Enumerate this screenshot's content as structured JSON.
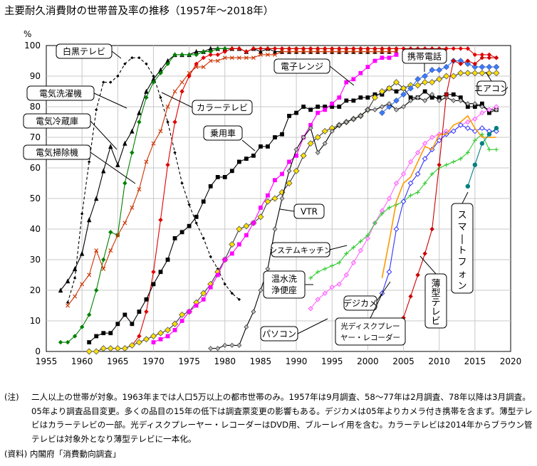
{
  "title": "主要耐久消費財の世帯普及率の推移（1957年〜2018年）",
  "notes": {
    "label": "(注)",
    "text": "二人以上の世帯が対象。1963年までは人口5万以上の都市世帯のみ。1957年は9月調査、58〜77年は2月調査、78年以降は3月調査。05年より調査品目変更。多くの品目の15年の低下は調査票変更の影響もある。デジカメは05年よりカメラ付き携帯を含まず。薄型テレビはカラーテレビの一部。光ディスクプレーヤー・レコーダーはDVD用、ブルーレイ用を含む。カラーテレビは2014年からブラウン管テレビは対象外となり薄型テレビに一本化。",
    "source": "(資料) 内閣府「消費動向調査」"
  },
  "chart_data": {
    "type": "line",
    "title": "主要耐久消費財の世帯普及率の推移（1957年〜2018年）",
    "xlabel": "",
    "ylabel": "%",
    "xlim": [
      1955,
      2020
    ],
    "ylim": [
      0,
      100
    ],
    "x_ticks": [
      1955,
      1960,
      1965,
      1970,
      1975,
      1980,
      1985,
      1990,
      1995,
      2000,
      2005,
      2010,
      2015,
      2020
    ],
    "y_ticks": [
      0,
      10,
      20,
      30,
      40,
      50,
      60,
      70,
      80,
      90,
      100
    ],
    "grid": true,
    "series": [
      {
        "name": "白黒テレビ",
        "color": "#000000",
        "marker": "diamond-small",
        "dash": "4,3",
        "x": [
          1958,
          1959,
          1960,
          1961,
          1962,
          1963,
          1964,
          1965,
          1966,
          1967,
          1968,
          1969,
          1970,
          1971,
          1972,
          1973,
          1974,
          1975,
          1976,
          1977,
          1978,
          1979,
          1980,
          1981,
          1982
        ],
        "y": [
          16,
          24,
          45,
          62,
          79,
          88,
          88,
          90,
          94,
          96,
          96,
          94,
          90,
          83,
          75,
          65,
          55,
          48,
          42,
          37,
          31,
          27,
          22,
          19,
          17
        ]
      },
      {
        "name": "電気冷蔵庫",
        "color": "#000000",
        "marker": "triangle",
        "x": [
          1957,
          1958,
          1959,
          1960,
          1961,
          1962,
          1963,
          1964,
          1965,
          1966,
          1967,
          1968,
          1969,
          1970,
          1971,
          1972,
          1973,
          1974,
          1975,
          1976,
          1977,
          1978,
          1979,
          1980,
          1981,
          1982,
          1983,
          1984,
          1985,
          1986,
          1987,
          1988,
          1989,
          1990,
          1991,
          1992,
          1993,
          1994,
          1995,
          1996,
          1997,
          1998,
          1999,
          2000,
          2001,
          2002,
          2003,
          2004
        ],
        "y": [
          20,
          23,
          27,
          32,
          43,
          50,
          59,
          67,
          61,
          68,
          72,
          78,
          85,
          89,
          92,
          95,
          97,
          97,
          97,
          98,
          98,
          99,
          99,
          99,
          99,
          99,
          98,
          99,
          98,
          99,
          98,
          98,
          98,
          98,
          98,
          98,
          98,
          98,
          98,
          98,
          98,
          98,
          98,
          98,
          98,
          98,
          98,
          98
        ]
      },
      {
        "name": "電気洗濯機",
        "color": "#008000",
        "marker": "diamond",
        "x": [
          1957,
          1958,
          1959,
          1960,
          1961,
          1962,
          1963,
          1964,
          1965,
          1966,
          1967,
          1968,
          1969,
          1970,
          1971,
          1972,
          1973,
          1974,
          1975,
          1976,
          1977,
          1978,
          1979,
          1980,
          1981,
          1982,
          1983,
          1984,
          1985,
          1986,
          1987,
          1988,
          1989,
          1990,
          1991,
          1992,
          1993,
          1994,
          1995,
          1996,
          1997,
          1998,
          1999,
          2000,
          2001,
          2002,
          2003,
          2004
        ],
        "y": [
          3,
          3,
          5,
          8,
          12,
          20,
          30,
          39,
          38,
          55,
          65,
          75,
          83,
          88,
          91,
          94,
          97,
          97,
          97,
          97,
          98,
          98,
          99,
          99,
          99,
          99,
          98,
          99,
          99,
          99,
          99,
          99,
          99,
          99,
          99,
          99,
          99,
          99,
          99,
          99,
          99,
          99,
          99,
          99,
          99,
          99,
          99,
          99
        ]
      },
      {
        "name": "電気掃除機",
        "color": "#cc3300",
        "marker": "cross",
        "x": [
          1958,
          1959,
          1960,
          1961,
          1962,
          1963,
          1964,
          1965,
          1966,
          1967,
          1968,
          1969,
          1970,
          1971,
          1972,
          1973,
          1974,
          1975,
          1976,
          1977,
          1978,
          1979,
          1980,
          1981,
          1982,
          1983,
          1984,
          1985,
          1986,
          1987,
          1988,
          1989,
          1990,
          1991,
          1992,
          1993,
          1994,
          1995,
          1996,
          1997,
          1998,
          1999,
          2000,
          2001,
          2002,
          2003,
          2004
        ],
        "y": [
          15,
          18,
          22,
          25,
          33,
          27,
          33,
          38,
          42,
          47,
          53,
          62,
          68,
          72,
          80,
          85,
          88,
          91,
          93,
          93,
          95,
          95,
          96,
          96,
          96,
          96,
          96,
          97,
          97,
          97,
          98,
          98,
          98,
          98,
          98,
          98,
          98,
          98,
          98,
          98,
          98,
          98,
          98,
          98,
          98,
          98,
          98
        ]
      },
      {
        "name": "カラーテレビ",
        "color": "#e00000",
        "marker": "diamond",
        "x": [
          1966,
          1967,
          1968,
          1969,
          1970,
          1971,
          1972,
          1973,
          1974,
          1975,
          1976,
          1977,
          1978,
          1979,
          1980,
          1981,
          1982,
          1983,
          1984,
          1985,
          1986,
          1987,
          1988,
          1989,
          1990,
          1991,
          1992,
          1993,
          1994,
          1995,
          1996,
          1997,
          1998,
          1999,
          2000,
          2001,
          2002,
          2003,
          2004,
          2005,
          2006,
          2007,
          2008,
          2009,
          2010,
          2011,
          2012,
          2013,
          2014,
          2015,
          2016,
          2017,
          2018
        ],
        "y": [
          1,
          2,
          5,
          13,
          26,
          43,
          61,
          75,
          85,
          90,
          94,
          96,
          97,
          97,
          98,
          99,
          99,
          98,
          99,
          99,
          99,
          99,
          99,
          99,
          99,
          99,
          99,
          99,
          99,
          99,
          99,
          99,
          99,
          99,
          99,
          99,
          99,
          99,
          99,
          99,
          99,
          99,
          99,
          99,
          99,
          99,
          99,
          99,
          99,
          97,
          97,
          97,
          96
        ]
      },
      {
        "name": "乗用車",
        "color": "#000000",
        "marker": "square",
        "x": [
          1961,
          1962,
          1963,
          1964,
          1965,
          1966,
          1967,
          1968,
          1969,
          1970,
          1971,
          1972,
          1973,
          1974,
          1975,
          1976,
          1977,
          1978,
          1979,
          1980,
          1981,
          1982,
          1983,
          1984,
          1985,
          1986,
          1987,
          1988,
          1989,
          1990,
          1991,
          1992,
          1993,
          1994,
          1995,
          1996,
          1997,
          1998,
          1999,
          2000,
          2001,
          2002,
          2003,
          2004,
          2005,
          2006,
          2007,
          2008,
          2009,
          2010,
          2011,
          2012,
          2013,
          2014,
          2015,
          2016,
          2017,
          2018
        ],
        "y": [
          3,
          5,
          6,
          6,
          9,
          12,
          9,
          13,
          17,
          22,
          26,
          30,
          37,
          39,
          41,
          44,
          49,
          54,
          57,
          57,
          59,
          62,
          63,
          64,
          67,
          67,
          70,
          71,
          77,
          78,
          80,
          79,
          80,
          80,
          80,
          80,
          82,
          82,
          83,
          83,
          84,
          84,
          86,
          85,
          86,
          83,
          83,
          85,
          83,
          83,
          84,
          84,
          83,
          80,
          80,
          81,
          78,
          79
        ]
      },
      {
        "name": "VTR",
        "color": "#000000",
        "marker": "diamond-yellow",
        "x": [
          1961,
          1962,
          1963,
          1964,
          1965,
          1966,
          1967,
          1968,
          1969,
          1970,
          1971,
          1972,
          1973,
          1974,
          1975,
          1976,
          1977,
          1978,
          1979,
          1980,
          1981,
          1982,
          1983,
          1984,
          1985,
          1986,
          1987,
          1988,
          1989,
          1990,
          1991,
          1992,
          1993,
          1994,
          1995,
          1996,
          1997,
          1998,
          1999,
          2000,
          2001,
          2002,
          2003,
          2004,
          2005,
          2006,
          2007,
          2008,
          2009,
          2010,
          2011,
          2012,
          2013,
          2014,
          2015,
          2016,
          2017,
          2018
        ],
        "y": [
          0,
          0,
          1,
          1,
          1,
          1,
          2,
          3,
          4,
          5,
          6,
          7,
          9,
          12,
          13,
          16,
          19,
          22,
          26,
          30,
          35,
          40,
          41,
          42,
          44,
          49,
          50,
          52,
          55,
          59,
          64,
          68,
          70,
          72,
          73,
          74,
          75,
          76,
          77,
          79,
          83,
          85,
          86,
          88,
          86,
          87,
          87,
          88,
          88,
          89,
          90,
          90,
          91,
          91,
          91,
          91,
          91,
          91
        ]
      },
      {
        "name": "エアコン",
        "color": "#3070ff",
        "marker": "diamond-blue",
        "x": [
          2002,
          2003,
          2004,
          2005,
          2006,
          2007,
          2008,
          2009,
          2010,
          2011,
          2012,
          2013,
          2014,
          2015,
          2016,
          2017,
          2018
        ],
        "y": [
          78,
          80,
          82,
          84,
          86,
          89,
          90,
          92,
          92,
          93,
          95,
          95,
          94,
          93,
          93,
          93,
          93
        ]
      },
      {
        "name": "携帯電話",
        "color": "#ff00ff",
        "marker": "square",
        "x": [
          1970,
          1971,
          1972,
          1973,
          1974,
          1975,
          1976,
          1977,
          1978,
          1979,
          1980,
          1981,
          1982,
          1983,
          1984,
          1985,
          1986,
          1987,
          1988,
          1989,
          1990,
          1991,
          1992,
          1993,
          1994,
          1995,
          1996,
          1997,
          1998,
          1999,
          2000,
          2001,
          2002,
          2003,
          2004
        ],
        "y": [
          3,
          4,
          5,
          7,
          10,
          13,
          15,
          17,
          21,
          25,
          30,
          32,
          35,
          38,
          42,
          47,
          51,
          56,
          58,
          62,
          64,
          70,
          74,
          78,
          79,
          81,
          83,
          88,
          89,
          91,
          93,
          95,
          96,
          96,
          97
        ]
      },
      {
        "name": "パソコン",
        "color": "#000000",
        "marker": "diamond-gray",
        "x": [
          1978,
          1979,
          1980,
          1981,
          1982,
          1983,
          1984,
          1985,
          1986,
          1987,
          1988,
          1989,
          1990,
          1991,
          1992,
          1993,
          1994,
          1995,
          1996,
          1997,
          1998,
          1999,
          2000,
          2001,
          2002,
          2003,
          2004,
          2005,
          2006,
          2007,
          2008,
          2009,
          2010,
          2011,
          2012,
          2013,
          2014,
          2015,
          2016,
          2017,
          2018
        ],
        "y": [
          1,
          1,
          2,
          2,
          2,
          8,
          13,
          20,
          27,
          40,
          50,
          59,
          66,
          70,
          73,
          65,
          68,
          72,
          74,
          75,
          76,
          77,
          79,
          79,
          80,
          81,
          79,
          80,
          82,
          83,
          82,
          84,
          82,
          83,
          82,
          82,
          81,
          81,
          80,
          79,
          79
        ]
      },
      {
        "name": "温水洗浄便座",
        "color": "#ff66ff",
        "marker": "diamond-pink",
        "x": [
          1992,
          1993,
          1994,
          1995,
          1996,
          1997,
          1998,
          1999,
          2000,
          2001,
          2002,
          2003,
          2004,
          2005,
          2006,
          2007,
          2008,
          2009,
          2010,
          2011,
          2012,
          2013,
          2014,
          2015,
          2016,
          2017,
          2018
        ],
        "y": [
          14,
          17,
          19,
          21,
          22,
          25,
          29,
          33,
          37,
          42,
          46,
          50,
          55,
          58,
          62,
          65,
          68,
          70,
          71,
          72,
          72,
          74,
          75,
          76,
          78,
          79,
          80
        ]
      },
      {
        "name": "システムキッチン",
        "color": "#33cc33",
        "marker": "plus",
        "x": [
          1992,
          1993,
          1994,
          1995,
          1996,
          1997,
          1998,
          1999,
          2000,
          2001,
          2002,
          2003,
          2004,
          2005,
          2006,
          2007,
          2008,
          2009,
          2010,
          2011,
          2012,
          2013,
          2014,
          2015,
          2016,
          2017,
          2018
        ],
        "y": [
          24,
          26,
          27,
          28,
          29,
          32,
          34,
          36,
          38,
          42,
          45,
          47,
          48,
          49,
          51,
          52,
          55,
          58,
          60,
          61,
          62,
          63,
          65,
          69,
          71,
          66,
          66
        ]
      },
      {
        "name": "光ディスクプレーヤー・レコーダー",
        "color": "#3333ff",
        "marker": "diamond-open",
        "x": [
          2002,
          2003,
          2004,
          2005,
          2006,
          2007,
          2008,
          2009,
          2010,
          2011,
          2012,
          2013,
          2014,
          2015,
          2016,
          2017,
          2018
        ],
        "y": [
          19,
          26,
          40,
          49,
          55,
          58,
          63,
          66,
          69,
          71,
          72,
          74,
          73,
          72,
          73,
          72,
          72
        ]
      },
      {
        "name": "デジカメ",
        "color": "#ff9900",
        "marker": "none",
        "x": [
          2002,
          2003,
          2004,
          2005,
          2006,
          2007,
          2008,
          2009,
          2010,
          2011,
          2012,
          2013,
          2014,
          2015,
          2016,
          2017,
          2018
        ],
        "y": [
          24,
          36,
          49,
          55,
          57,
          62,
          67,
          66,
          71,
          71,
          74,
          75,
          77,
          73,
          70,
          70,
          70
        ]
      },
      {
        "name": "スマートフォン",
        "color": "#008080",
        "marker": "circle",
        "x": [
          2014,
          2015,
          2016,
          2017,
          2018
        ],
        "y": [
          54,
          61,
          68,
          71,
          73
        ]
      },
      {
        "name": "薄型テレビ",
        "color": "#cc0000",
        "marker": "diamond",
        "x": [
          2005,
          2006,
          2007,
          2008,
          2009,
          2010,
          2011,
          2012,
          2013,
          2014,
          2015,
          2016,
          2017,
          2018
        ],
        "y": [
          11,
          18,
          25,
          32,
          40,
          61,
          84,
          95,
          94,
          95,
          94,
          96,
          96,
          96
        ]
      }
    ],
    "labels": [
      "白黒テレビ",
      "電気洗濯機",
      "電気冷蔵庫",
      "電気掃除機",
      "カラーテレビ",
      "乗用車",
      "電子レンジ",
      "携帯電話",
      "エアコン",
      "VTR",
      "システムキッチン",
      "温水洗浄便座",
      "デジカメ",
      "パソコン",
      "光ディスクプレーヤー・レコーダー",
      "スマートフォン",
      "薄型テレビ"
    ]
  }
}
